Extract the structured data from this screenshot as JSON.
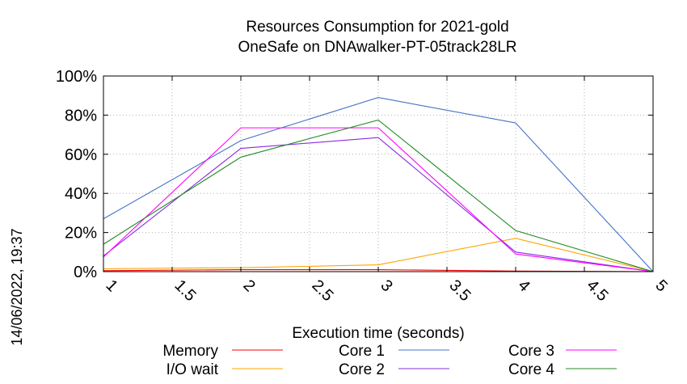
{
  "chart_data": {
    "type": "line",
    "title": "Resources Consumption for 2021-gold",
    "subtitle": "OneSafe on DNAwalker-PT-05track28LR",
    "xlabel": "Execution time (seconds)",
    "ylabel": "",
    "side_label": "14/06/2022, 19:37",
    "xlim": [
      1,
      5
    ],
    "ylim": [
      0,
      100
    ],
    "x_ticks": [
      "1",
      "1.5",
      "2",
      "2.5",
      "3",
      "3.5",
      "4",
      "4.5",
      "5"
    ],
    "x_tick_values": [
      1,
      1.5,
      2,
      2.5,
      3,
      3.5,
      4,
      4.5,
      5
    ],
    "y_ticks": [
      "0%",
      "20%",
      "40%",
      "60%",
      "80%",
      "100%"
    ],
    "y_tick_values": [
      0,
      20,
      40,
      60,
      80,
      100
    ],
    "grid": true,
    "legend_position": "bottom",
    "series": [
      {
        "name": "Memory",
        "color": "#ff0000",
        "x": [
          1,
          2,
          3,
          4,
          5
        ],
        "y": [
          0.5,
          1,
          1,
          0.3,
          0
        ]
      },
      {
        "name": "I/O wait",
        "color": "#ffa500",
        "x": [
          1,
          2,
          3,
          4,
          5
        ],
        "y": [
          1.5,
          2,
          3.5,
          17,
          0
        ]
      },
      {
        "name": "Core 1",
        "color": "#4472c4",
        "x": [
          1,
          2,
          3,
          4,
          5
        ],
        "y": [
          27,
          67,
          89,
          76,
          0
        ]
      },
      {
        "name": "Core 2",
        "color": "#8a2be2",
        "x": [
          1,
          2,
          3,
          4,
          5
        ],
        "y": [
          8,
          63,
          68.5,
          10,
          0
        ]
      },
      {
        "name": "Core 3",
        "color": "#ff00ff",
        "x": [
          1,
          2,
          3,
          4,
          5
        ],
        "y": [
          7.5,
          73.5,
          73.5,
          9,
          0
        ]
      },
      {
        "name": "Core 4",
        "color": "#228b22",
        "x": [
          1,
          2,
          3,
          4,
          5
        ],
        "y": [
          14,
          58.5,
          77.5,
          21,
          0
        ]
      }
    ]
  }
}
